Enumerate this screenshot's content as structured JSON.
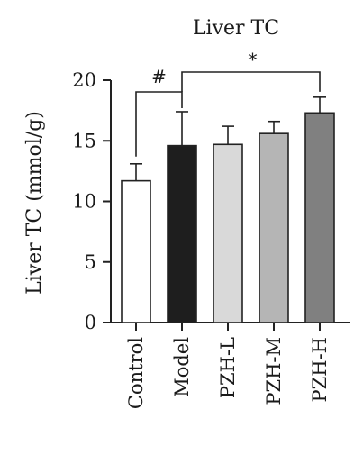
{
  "chart_data": {
    "type": "bar",
    "title": "Liver TC",
    "xlabel": "",
    "ylabel": "Liver TC (mmol/g)",
    "ylim": [
      0,
      20
    ],
    "yticks": [
      0,
      5,
      10,
      15,
      20
    ],
    "grid": false,
    "categories": [
      "Control",
      "Model",
      "PZH-L",
      "PZH-M",
      "PZH-H"
    ],
    "values": [
      11.7,
      14.6,
      14.7,
      15.6,
      17.3
    ],
    "errors": [
      1.4,
      2.8,
      1.5,
      1.0,
      1.3
    ],
    "bar_colors": [
      "#ffffff",
      "#1e1e1e",
      "#d9d9d9",
      "#b5b5b5",
      "#808080"
    ],
    "annotations": [
      {
        "label": "#",
        "from": "Control",
        "to": "Model"
      },
      {
        "label": "*",
        "from": "Model",
        "to": "PZH-H"
      }
    ]
  }
}
